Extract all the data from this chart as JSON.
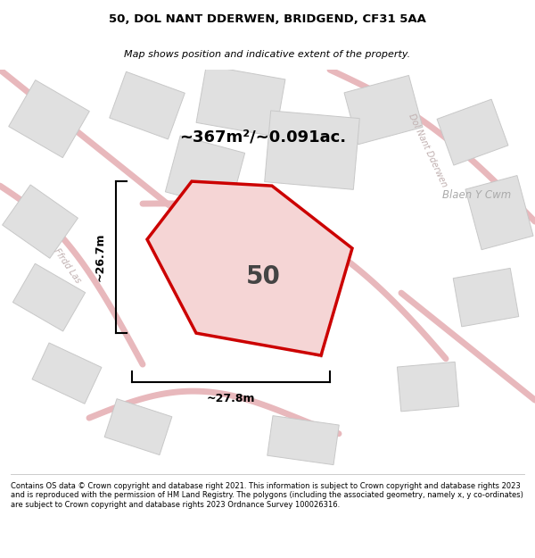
{
  "title": "50, DOL NANT DDERWEN, BRIDGEND, CF31 5AA",
  "subtitle": "Map shows position and indicative extent of the property.",
  "footer": "Contains OS data © Crown copyright and database right 2021. This information is subject to Crown copyright and database rights 2023 and is reproduced with the permission of HM Land Registry. The polygons (including the associated geometry, namely x, y co-ordinates) are subject to Crown copyright and database rights 2023 Ordnance Survey 100026316.",
  "area_label": "~367m²/~0.091ac.",
  "property_number": "50",
  "dim_width": "~27.8m",
  "dim_height": "~26.7m",
  "road_color": "#e8b8bc",
  "building_color": "#e0e0e0",
  "building_edge": "#c8c8c8",
  "map_bg": "#f5f5f5",
  "poly_fill": "#f5d5d5",
  "poly_edge": "#cc0000",
  "street_color": "#c0b0b0",
  "locality_color": "#aaaaaa"
}
